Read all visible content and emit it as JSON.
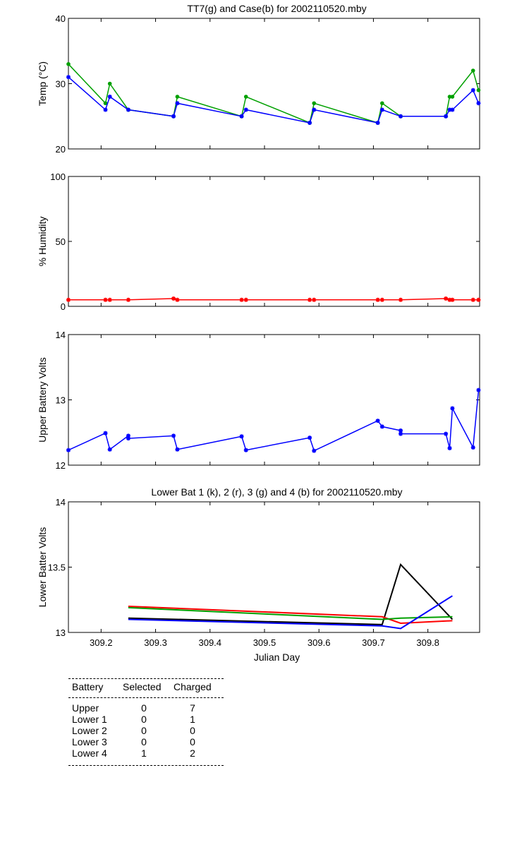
{
  "chart_data": [
    {
      "type": "line",
      "title": "TT7(g) and Case(b) for 2002110520.mby",
      "xlabel": "",
      "ylabel": "Temp  (°C)",
      "xlim": [
        309.14,
        309.895
      ],
      "ylim": [
        20,
        40
      ],
      "yticks": [
        20,
        30,
        40
      ],
      "ytick_labels": [
        "20",
        "30",
        "40"
      ],
      "series": [
        {
          "name": "TT7",
          "color": "#00a000",
          "marker": "dot",
          "x": [
            309.14,
            309.208,
            309.216,
            309.25,
            309.333,
            309.34,
            309.458,
            309.466,
            309.583,
            309.591,
            309.708,
            309.716,
            309.75,
            309.833,
            309.84,
            309.845,
            309.883,
            309.893
          ],
          "y": [
            33,
            27,
            30,
            26,
            25,
            28,
            25,
            28,
            24,
            27,
            24,
            27,
            25,
            25,
            28,
            28,
            32,
            29
          ]
        },
        {
          "name": "Case",
          "color": "#0000ff",
          "marker": "star",
          "x": [
            309.14,
            309.208,
            309.216,
            309.25,
            309.333,
            309.34,
            309.458,
            309.466,
            309.583,
            309.591,
            309.708,
            309.716,
            309.75,
            309.833,
            309.84,
            309.845,
            309.883,
            309.893
          ],
          "y": [
            31,
            26,
            28,
            26,
            25,
            27,
            25,
            26,
            24,
            26,
            24,
            26,
            25,
            25,
            26,
            26,
            29,
            27
          ]
        }
      ]
    },
    {
      "type": "line",
      "title": "",
      "xlabel": "",
      "ylabel": "% Humidity",
      "xlim": [
        309.14,
        309.895
      ],
      "ylim": [
        0,
        100
      ],
      "yticks": [
        0,
        50,
        100
      ],
      "ytick_labels": [
        "0",
        "50",
        "100"
      ],
      "series": [
        {
          "name": "Humidity",
          "color": "#ff0000",
          "marker": "star",
          "x": [
            309.14,
            309.208,
            309.216,
            309.25,
            309.333,
            309.34,
            309.458,
            309.466,
            309.583,
            309.591,
            309.708,
            309.716,
            309.75,
            309.833,
            309.84,
            309.845,
            309.883,
            309.893
          ],
          "y": [
            5,
            5,
            5,
            5,
            6,
            5,
            5,
            5,
            5,
            5,
            5,
            5,
            5,
            6,
            5,
            5,
            5,
            5
          ]
        }
      ]
    },
    {
      "type": "line",
      "title": "",
      "xlabel": "",
      "ylabel": "Upper Battery Volts",
      "xlim": [
        309.14,
        309.895
      ],
      "ylim": [
        12,
        14
      ],
      "yticks": [
        12,
        13,
        14
      ],
      "ytick_labels": [
        "12",
        "13",
        "14"
      ],
      "series": [
        {
          "name": "Upper",
          "color": "#0000ff",
          "marker": "star",
          "x": [
            309.14,
            309.208,
            309.216,
            309.25,
            309.25,
            309.333,
            309.34,
            309.458,
            309.466,
            309.583,
            309.591,
            309.708,
            309.716,
            309.75,
            309.75,
            309.833,
            309.84,
            309.845,
            309.883,
            309.893
          ],
          "y": [
            12.23,
            12.49,
            12.24,
            12.45,
            12.41,
            12.45,
            12.24,
            12.44,
            12.23,
            12.42,
            12.22,
            12.68,
            12.59,
            12.53,
            12.48,
            12.48,
            12.26,
            12.87,
            12.27,
            13.15
          ]
        }
      ]
    },
    {
      "type": "line",
      "title": "Lower Bat 1 (k), 2 (r), 3 (g) and 4 (b) for 2002110520.mby",
      "xlabel": "Julian Day",
      "ylabel": "Lower Batter Volts",
      "xlim": [
        309.14,
        309.895
      ],
      "ylim": [
        13,
        14
      ],
      "yticks": [
        13,
        13.5,
        14
      ],
      "ytick_labels": [
        "13",
        "13.5",
        "14"
      ],
      "xticks": [
        309.2,
        309.3,
        309.4,
        309.5,
        309.6,
        309.7,
        309.8
      ],
      "xtick_labels": [
        "309.2",
        "309.3",
        "309.4",
        "309.5",
        "309.6",
        "309.7",
        "309.8"
      ],
      "series": [
        {
          "name": "Lower 1",
          "color": "#000000",
          "x": [
            309.25,
            309.716,
            309.75,
            309.845
          ],
          "y": [
            13.11,
            13.06,
            13.52,
            13.1
          ]
        },
        {
          "name": "Lower 2",
          "color": "#ff0000",
          "x": [
            309.25,
            309.716,
            309.75,
            309.845
          ],
          "y": [
            13.2,
            13.12,
            13.07,
            13.09
          ]
        },
        {
          "name": "Lower 3",
          "color": "#00a000",
          "x": [
            309.25,
            309.716,
            309.75,
            309.845
          ],
          "y": [
            13.19,
            13.1,
            13.11,
            13.12
          ]
        },
        {
          "name": "Lower 4",
          "color": "#0000ff",
          "x": [
            309.25,
            309.716,
            309.75,
            309.845
          ],
          "y": [
            13.1,
            13.05,
            13.03,
            13.28
          ]
        }
      ]
    }
  ],
  "table": {
    "headers": [
      "Battery",
      "Selected",
      "Charged"
    ],
    "rows": [
      {
        "battery": "Upper",
        "selected": "0",
        "charged": "7"
      },
      {
        "battery": "Lower 1",
        "selected": "0",
        "charged": "1"
      },
      {
        "battery": "Lower 2",
        "selected": "0",
        "charged": "0"
      },
      {
        "battery": "Lower 3",
        "selected": "0",
        "charged": "0"
      },
      {
        "battery": "Lower 4",
        "selected": "1",
        "charged": "2"
      }
    ]
  }
}
